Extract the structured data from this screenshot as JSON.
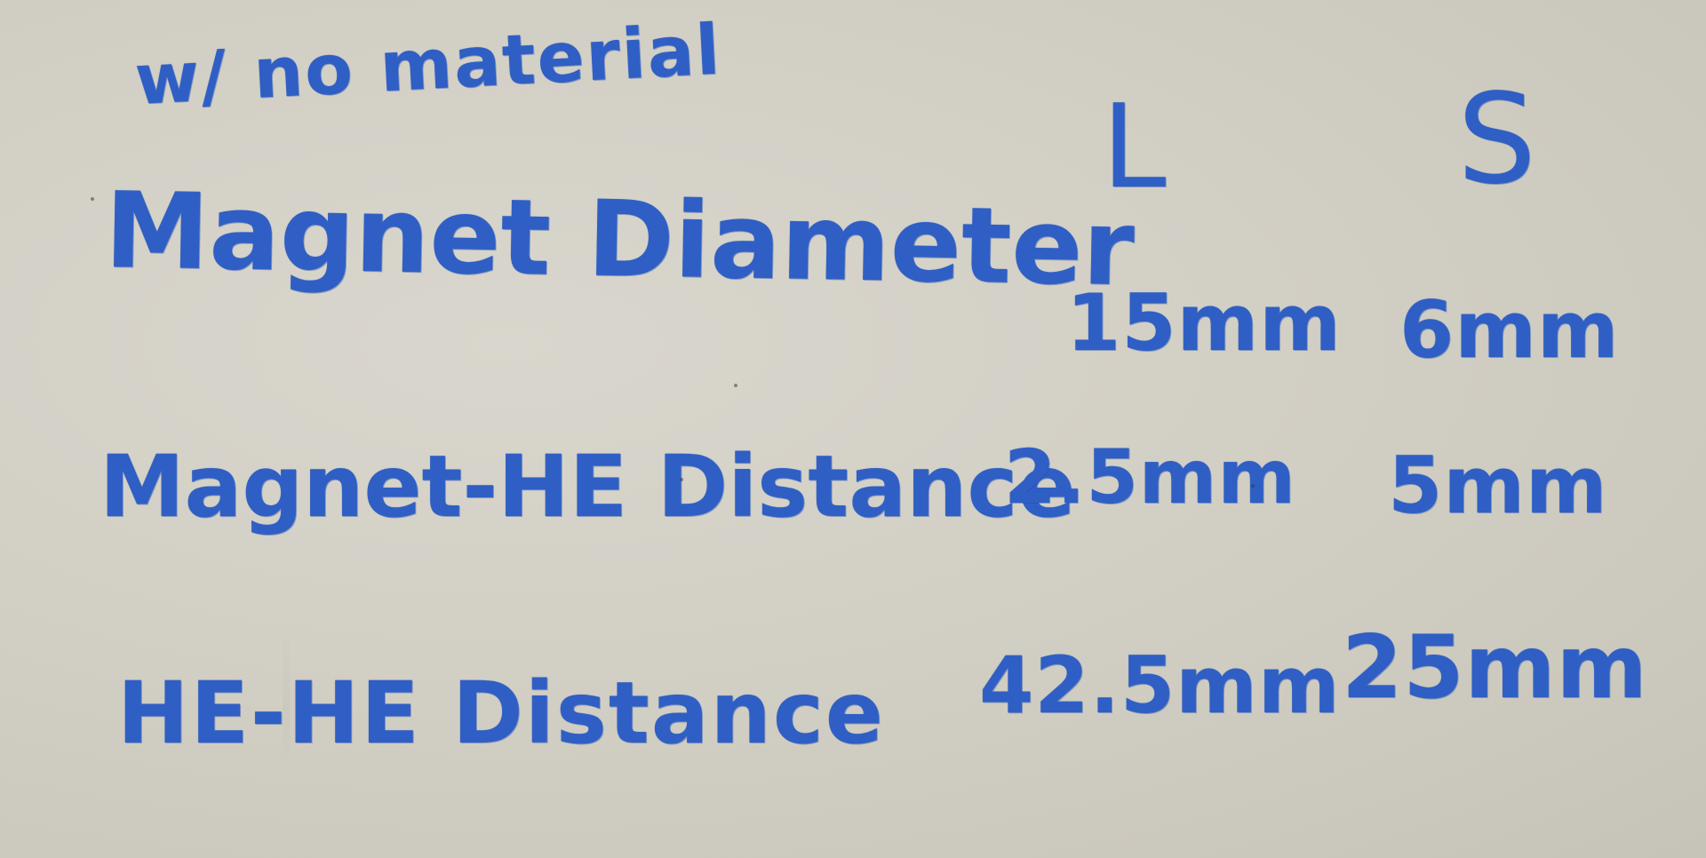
{
  "note": "w/ no material",
  "columns": {
    "large": "L",
    "small": "S"
  },
  "rows": [
    {
      "label": "Magnet Diameter",
      "large": "15mm",
      "small": "6mm"
    },
    {
      "label": "Magnet-HE Distance",
      "large": "2.5mm",
      "small": "5mm"
    },
    {
      "label": "HE-HE Distance",
      "large": "42.5mm",
      "small": "25mm"
    }
  ],
  "colors": {
    "ink": "#2f5fc4",
    "board": "#d2cfc5"
  }
}
